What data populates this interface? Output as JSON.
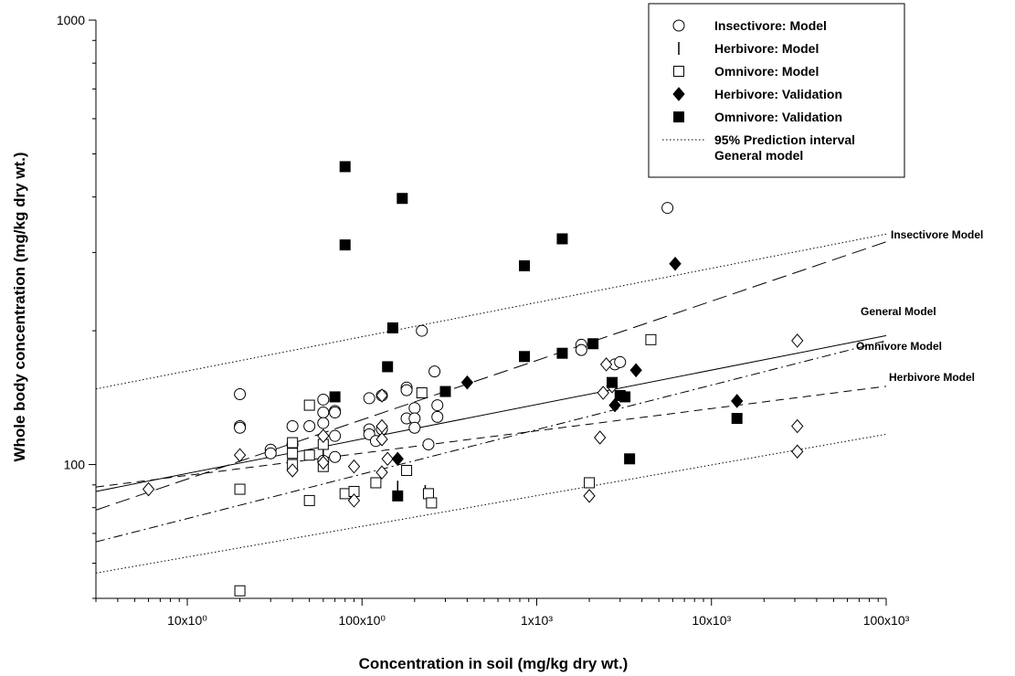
{
  "chart_data": {
    "type": "scatter",
    "x_scale": "log",
    "y_scale": "log",
    "xlim": [
      3,
      100000
    ],
    "ylim": [
      50,
      1000
    ],
    "xlabel": "Concentration in soil (mg/kg dry wt.)",
    "ylabel": "Whole body concentration (mg/kg dry wt.)",
    "x_ticks": [
      {
        "value": 10,
        "label": "10x10⁰"
      },
      {
        "value": 100,
        "label": "100x10⁰"
      },
      {
        "value": 1000,
        "label": "1x10³"
      },
      {
        "value": 10000,
        "label": "10x10³"
      },
      {
        "value": 100000,
        "label": "100x10³"
      }
    ],
    "y_ticks": [
      {
        "value": 100,
        "label": "100"
      },
      {
        "value": 1000,
        "label": "1000"
      }
    ],
    "legend_position": "top-right",
    "series": [
      {
        "name": "Insectivore: Model",
        "marker": "circle-open",
        "points": [
          [
            20,
            144
          ],
          [
            20,
            122
          ],
          [
            20,
            121
          ],
          [
            30,
            108
          ],
          [
            30,
            106
          ],
          [
            40,
            122
          ],
          [
            40,
            111
          ],
          [
            50,
            122
          ],
          [
            60,
            140
          ],
          [
            60,
            131
          ],
          [
            60,
            124
          ],
          [
            60,
            102
          ],
          [
            70,
            132
          ],
          [
            70,
            131
          ],
          [
            70,
            116
          ],
          [
            70,
            104
          ],
          [
            110,
            141
          ],
          [
            110,
            120
          ],
          [
            110,
            117
          ],
          [
            120,
            113
          ],
          [
            130,
            143
          ],
          [
            130,
            120
          ],
          [
            180,
            149
          ],
          [
            180,
            147
          ],
          [
            180,
            127
          ],
          [
            200,
            134
          ],
          [
            200,
            127
          ],
          [
            200,
            121
          ],
          [
            220,
            200
          ],
          [
            240,
            111
          ],
          [
            260,
            162
          ],
          [
            270,
            136
          ],
          [
            270,
            128
          ],
          [
            1800,
            186
          ],
          [
            1800,
            181
          ],
          [
            2800,
            168
          ],
          [
            3000,
            170
          ],
          [
            5600,
            378
          ]
        ]
      },
      {
        "name": "Herbivore: Model",
        "marker": "vline",
        "points": [
          [
            60,
            106
          ],
          [
            160,
            89
          ],
          [
            230,
            87
          ]
        ]
      },
      {
        "name": "Omnivore: Model",
        "marker": "square-open",
        "points": [
          [
            20,
            88
          ],
          [
            20,
            52
          ],
          [
            40,
            112
          ],
          [
            40,
            106
          ],
          [
            40,
            100
          ],
          [
            50,
            83
          ],
          [
            50,
            105
          ],
          [
            50,
            136
          ],
          [
            60,
            111
          ],
          [
            60,
            99
          ],
          [
            80,
            86
          ],
          [
            90,
            87
          ],
          [
            120,
            91
          ],
          [
            180,
            97
          ],
          [
            220,
            145
          ],
          [
            240,
            86
          ],
          [
            250,
            82
          ],
          [
            2000,
            91
          ],
          [
            4500,
            191
          ]
        ]
      },
      {
        "name": "Omnivore: Model (diamonds)",
        "marker": "diamond-open",
        "points": [
          [
            6,
            88
          ],
          [
            20,
            105
          ],
          [
            40,
            97
          ],
          [
            60,
            116
          ],
          [
            60,
            101
          ],
          [
            90,
            83
          ],
          [
            90,
            99
          ],
          [
            130,
            143
          ],
          [
            130,
            122
          ],
          [
            130,
            114
          ],
          [
            130,
            96
          ],
          [
            140,
            103
          ],
          [
            2000,
            85
          ],
          [
            2300,
            115
          ],
          [
            2400,
            145
          ],
          [
            2500,
            168
          ],
          [
            2700,
            150
          ],
          [
            31000,
            190
          ],
          [
            31000,
            122
          ],
          [
            31000,
            107
          ]
        ]
      },
      {
        "name": "Herbivore: Validation",
        "marker": "diamond-filled",
        "points": [
          [
            160,
            103
          ],
          [
            400,
            153
          ],
          [
            2800,
            136
          ],
          [
            3700,
            163
          ],
          [
            6200,
            283
          ],
          [
            14000,
            139
          ]
        ]
      },
      {
        "name": "Omnivore: Validation",
        "marker": "square-filled",
        "points": [
          [
            70,
            142
          ],
          [
            80,
            468
          ],
          [
            80,
            312
          ],
          [
            140,
            166
          ],
          [
            150,
            203
          ],
          [
            170,
            397
          ],
          [
            160,
            85
          ],
          [
            300,
            146
          ],
          [
            850,
            280
          ],
          [
            850,
            175
          ],
          [
            1400,
            178
          ],
          [
            1400,
            322
          ],
          [
            2100,
            187
          ],
          [
            2700,
            153
          ],
          [
            3000,
            143
          ],
          [
            3200,
            142
          ],
          [
            3400,
            103
          ],
          [
            14000,
            127
          ]
        ]
      }
    ],
    "lines": [
      {
        "name": "Insectivore Model",
        "style": "long-dash",
        "from": [
          3,
          79
        ],
        "to": [
          100000,
          317
        ]
      },
      {
        "name": "General Model",
        "style": "solid",
        "from": [
          3,
          87
        ],
        "to": [
          100000,
          195
        ]
      },
      {
        "name": "Omnivore Model",
        "style": "dash-dot",
        "from": [
          3,
          67
        ],
        "to": [
          100000,
          190
        ]
      },
      {
        "name": "Herbivore Model",
        "style": "dash",
        "from": [
          3,
          89
        ],
        "to": [
          100000,
          150
        ]
      },
      {
        "name": "95% Prediction interval upper",
        "style": "dotted",
        "from": [
          3,
          148
        ],
        "to": [
          100000,
          330
        ]
      },
      {
        "name": "95% Prediction interval lower",
        "style": "dotted",
        "from": [
          3,
          57
        ],
        "to": [
          100000,
          117
        ]
      }
    ],
    "line_labels": [
      {
        "text": "Insectivore Model",
        "x": 100000,
        "y": 317
      },
      {
        "text": "General Model",
        "x": 100000,
        "y": 195
      },
      {
        "text": "Omnivore Model",
        "x": 100000,
        "y": 190
      },
      {
        "text": "Herbivore Model",
        "x": 100000,
        "y": 150
      }
    ],
    "legend": [
      {
        "marker": "circle-open",
        "label": "Insectivore: Model"
      },
      {
        "marker": "vline",
        "label": "Herbivore: Model"
      },
      {
        "marker": "square-open",
        "label": "Omnivore: Model"
      },
      {
        "marker": "diamond-filled",
        "label": "Herbivore: Validation"
      },
      {
        "marker": "square-filled",
        "label": "Omnivore: Validation"
      },
      {
        "marker": "dotted-line",
        "label": "95% Prediction interval",
        "label2": "General model"
      }
    ]
  }
}
